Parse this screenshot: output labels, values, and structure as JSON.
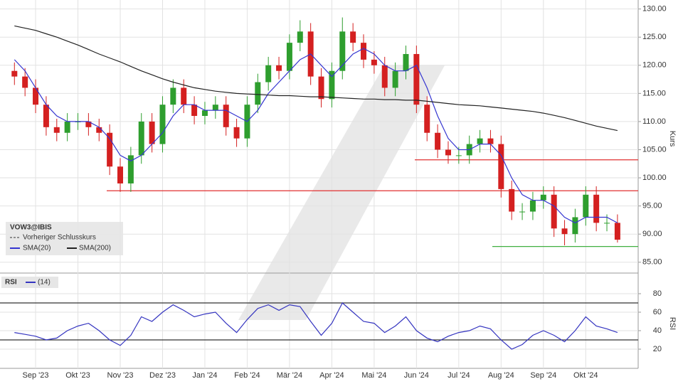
{
  "chart_data": [
    {
      "type": "candlestick",
      "symbol": "VOW3@IBIS",
      "axis_label": "Kurs",
      "legend": [
        "Vorheriger Schlusskurs"
      ],
      "categories": [
        null,
        null,
        "Sep '23",
        null,
        null,
        null,
        "Okt '23",
        null,
        null,
        null,
        "Nov '23",
        null,
        null,
        null,
        "Dez '23",
        null,
        null,
        null,
        "Jan '24",
        null,
        null,
        null,
        "Feb '24",
        null,
        null,
        null,
        "Mär '24",
        null,
        null,
        null,
        "Apr '24",
        null,
        null,
        null,
        "Mai '24",
        null,
        null,
        null,
        "Jun '24",
        null,
        null,
        null,
        "Jul '24",
        null,
        null,
        null,
        "Aug '24",
        null,
        null,
        null,
        "Sep '24",
        null,
        null,
        null,
        "Okt '24",
        null,
        null,
        null
      ],
      "open": [
        119,
        118,
        116,
        113,
        109,
        108,
        110,
        110,
        109,
        108,
        102,
        99,
        104,
        110,
        106,
        113,
        116,
        113,
        111,
        112,
        113,
        109,
        107,
        113,
        117,
        120,
        119,
        124,
        126,
        118,
        114,
        119,
        126,
        124,
        121,
        120,
        116,
        119,
        122,
        113,
        108,
        105,
        104,
        104,
        106,
        107,
        106,
        98,
        94,
        94,
        96,
        97,
        91,
        90,
        93,
        97,
        92,
        92
      ],
      "high": [
        120.5,
        119.5,
        117.5,
        114.5,
        110.5,
        111.5,
        111.5,
        111.5,
        110.5,
        109.5,
        103.5,
        105.5,
        111.5,
        111.5,
        114.5,
        117.5,
        117.5,
        114.5,
        113.5,
        114.5,
        114.5,
        110.5,
        114.5,
        118.5,
        121.5,
        121.5,
        125.5,
        128,
        127.5,
        119.5,
        120.5,
        128.5,
        127.5,
        125.5,
        122.5,
        121.5,
        120.5,
        123.5,
        123.5,
        114.5,
        109.5,
        106.5,
        105.5,
        107.5,
        108.5,
        108.5,
        107.5,
        99.5,
        95.5,
        97.5,
        98.5,
        98.5,
        92.5,
        94.5,
        98.5,
        98.5,
        93.5,
        93.5
      ],
      "low": [
        116.5,
        114.5,
        111.5,
        107.5,
        106.5,
        106.5,
        108.5,
        107.5,
        106.5,
        100.5,
        97.5,
        97.5,
        102.5,
        104.5,
        104.5,
        111.5,
        111.5,
        109.5,
        109.5,
        110.5,
        107.5,
        105.5,
        105.5,
        111.5,
        115.5,
        117.5,
        117.5,
        122.5,
        116.5,
        112.5,
        112.5,
        117.5,
        122.5,
        119.5,
        118.5,
        114.5,
        114.5,
        117.5,
        111.5,
        106.5,
        103.5,
        102.5,
        102.5,
        102.5,
        104.5,
        104.5,
        96.5,
        92.5,
        92.5,
        92.5,
        94.5,
        89.5,
        88,
        88.5,
        91.5,
        90.5,
        90.5,
        88.5
      ],
      "close": [
        118,
        116,
        113,
        109,
        108,
        110,
        110,
        109,
        108,
        102,
        99,
        104,
        110,
        106,
        113,
        116,
        113,
        111,
        112,
        113,
        109,
        107,
        113,
        117,
        120,
        119,
        124,
        126,
        118,
        114,
        119,
        126,
        124,
        121,
        120,
        116,
        119,
        122,
        113,
        108,
        105,
        104,
        104,
        106,
        107,
        106,
        98,
        94,
        94,
        96,
        97,
        91,
        90,
        93,
        97,
        92,
        92,
        89
      ],
      "up_color": "#2e9e2e",
      "down_color": "#d42020",
      "series": [
        {
          "name": "SMA(20)",
          "color": "#3535d0",
          "values": [
            121,
            119,
            116,
            113,
            111,
            110,
            110,
            110,
            109,
            107,
            104,
            103,
            104,
            106,
            108,
            111,
            113,
            113,
            112,
            112,
            112,
            111,
            110,
            112,
            115,
            117,
            119,
            121,
            122,
            120,
            118,
            120,
            122,
            123,
            122,
            120,
            119,
            119,
            120,
            116,
            111,
            107,
            105,
            105,
            106,
            106,
            104,
            100,
            97,
            96,
            96,
            95,
            93,
            92,
            93,
            93,
            93,
            92
          ]
        },
        {
          "name": "SMA(200)",
          "color": "#222222",
          "values": [
            127,
            126.6,
            126.2,
            125.6,
            125,
            124.3,
            123.6,
            122.8,
            122,
            121.3,
            120.6,
            119.8,
            119,
            118.3,
            117.6,
            117,
            116.5,
            116,
            115.7,
            115.4,
            115.2,
            115,
            114.9,
            114.8,
            114.7,
            114.6,
            114.6,
            114.5,
            114.4,
            114.4,
            114.3,
            114.2,
            114.1,
            114,
            114,
            113.9,
            113.9,
            113.8,
            113.8,
            113.6,
            113.4,
            113.2,
            113,
            112.9,
            112.8,
            112.6,
            112.4,
            112.2,
            112,
            111.8,
            111.5,
            111.1,
            110.7,
            110.2,
            109.7,
            109.2,
            108.8,
            108.4
          ]
        }
      ],
      "levels": [
        {
          "value": 97.7,
          "color": "#e03030"
        },
        {
          "value": 103.2,
          "color": "#e03030"
        },
        {
          "value": 87.8,
          "color": "#40b040"
        }
      ],
      "ylim": [
        83.2,
        131.6
      ],
      "yticks": [
        {
          "value": 85,
          "label": "85.00"
        },
        {
          "value": 90,
          "label": "90.00"
        },
        {
          "value": 95,
          "label": "95.00"
        },
        {
          "value": 100,
          "label": "100.00"
        },
        {
          "value": 105,
          "label": "105.00"
        },
        {
          "value": 110,
          "label": "110.00"
        },
        {
          "value": 115,
          "label": "115.00"
        },
        {
          "value": 120,
          "label": "120.00"
        },
        {
          "value": 125,
          "label": "125.00"
        },
        {
          "value": 130,
          "label": "130.00"
        }
      ],
      "grid": true
    },
    {
      "type": "line",
      "title": "RSI",
      "axis_label": "RSI",
      "series": [
        {
          "name": "(14)",
          "color": "#3535c0",
          "values": [
            38,
            36,
            34,
            30,
            32,
            40,
            45,
            48,
            40,
            30,
            24,
            35,
            55,
            50,
            60,
            68,
            62,
            55,
            58,
            60,
            48,
            38,
            52,
            64,
            68,
            62,
            68,
            66,
            50,
            35,
            48,
            70,
            60,
            50,
            48,
            38,
            45,
            55,
            40,
            32,
            28,
            34,
            38,
            40,
            45,
            42,
            30,
            20,
            25,
            35,
            40,
            35,
            28,
            40,
            55,
            45,
            42,
            38
          ]
        }
      ],
      "levels": [
        {
          "value": 70,
          "color": "#333333"
        },
        {
          "value": 30,
          "color": "#333333"
        }
      ],
      "ylim": [
        0,
        100
      ],
      "yticks": [
        20,
        40,
        60,
        80
      ],
      "grid": true
    }
  ]
}
